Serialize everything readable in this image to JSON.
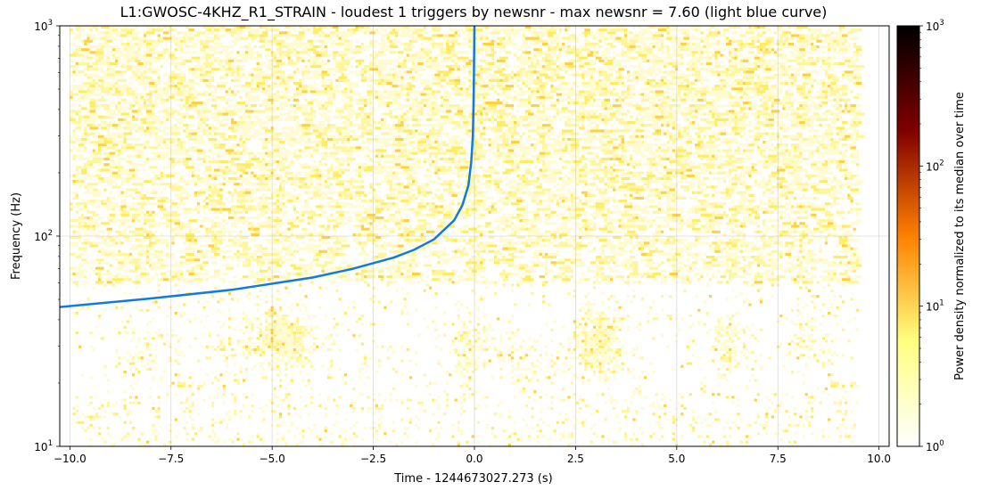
{
  "chart_data": {
    "type": "heatmap",
    "title": "L1:GWOSC-4KHZ_R1_STRAIN - loudest 1 triggers by newsnr - max newsnr = 7.60 (light blue curve)",
    "xlabel": "Time - 1244673027.273 (s)",
    "ylabel": "Frequency (Hz)",
    "xlim": [
      -10.25,
      10.25
    ],
    "ylim": [
      10,
      1000
    ],
    "yscale": "log",
    "grid": true,
    "x_ticks": [
      -10.0,
      -7.5,
      -5.0,
      -2.5,
      0.0,
      2.5,
      5.0,
      7.5,
      10.0
    ],
    "x_tick_labels": [
      "−10.0",
      "−7.5",
      "−5.0",
      "−2.5",
      "0.0",
      "2.5",
      "5.0",
      "7.5",
      "10.0"
    ],
    "y_ticks": [
      {
        "value": 10,
        "base": "10",
        "exp": "1"
      },
      {
        "value": 100,
        "base": "10",
        "exp": "2"
      },
      {
        "value": 1000,
        "base": "10",
        "exp": "3"
      }
    ],
    "heatmap_extent": {
      "t_min": -10.0,
      "t_max": 9.5,
      "f_min": 10,
      "f_max": 1000
    },
    "colorbar": {
      "label": "Power density normalized to its median over time",
      "scale": "log",
      "range": [
        1,
        1000
      ],
      "colormap": "afmhot_r",
      "ticks": [
        {
          "value": 1,
          "base": "10",
          "exp": "0"
        },
        {
          "value": 10,
          "base": "10",
          "exp": "1"
        },
        {
          "value": 100,
          "base": "10",
          "exp": "2"
        },
        {
          "value": 1000,
          "base": "10",
          "exp": "3"
        }
      ]
    },
    "series": [
      {
        "type": "line",
        "color": "#0f7ae5",
        "x": [
          -10.25,
          -8,
          -6,
          -4,
          -3,
          -2,
          -1.5,
          -1,
          -0.5,
          -0.3,
          -0.15,
          -0.08,
          -0.04,
          -0.02,
          0
        ],
        "y": [
          46,
          50.5,
          55.5,
          63.5,
          70,
          79,
          86,
          96.5,
          119,
          140,
          174,
          225,
          300,
          450,
          1000
        ]
      }
    ],
    "hotspots": [
      {
        "t": -4.95,
        "f": 34,
        "level": 1.8
      },
      {
        "t": -4.4,
        "f": 30,
        "level": 1.4
      },
      {
        "t": -0.1,
        "f": 30,
        "level": 1.2
      },
      {
        "t": 2.9,
        "f": 32,
        "level": 1.5
      },
      {
        "t": 3.3,
        "f": 30,
        "level": 1.2
      },
      {
        "t": 6.3,
        "f": 30,
        "level": 1.2
      },
      {
        "t": -8.2,
        "f": 28,
        "level": 0.6
      },
      {
        "t": 1.2,
        "f": 25,
        "level": 0.6
      },
      {
        "t": -6.0,
        "f": 30,
        "level": 0.5
      },
      {
        "t": 8.2,
        "f": 32,
        "level": 0.6
      }
    ]
  }
}
